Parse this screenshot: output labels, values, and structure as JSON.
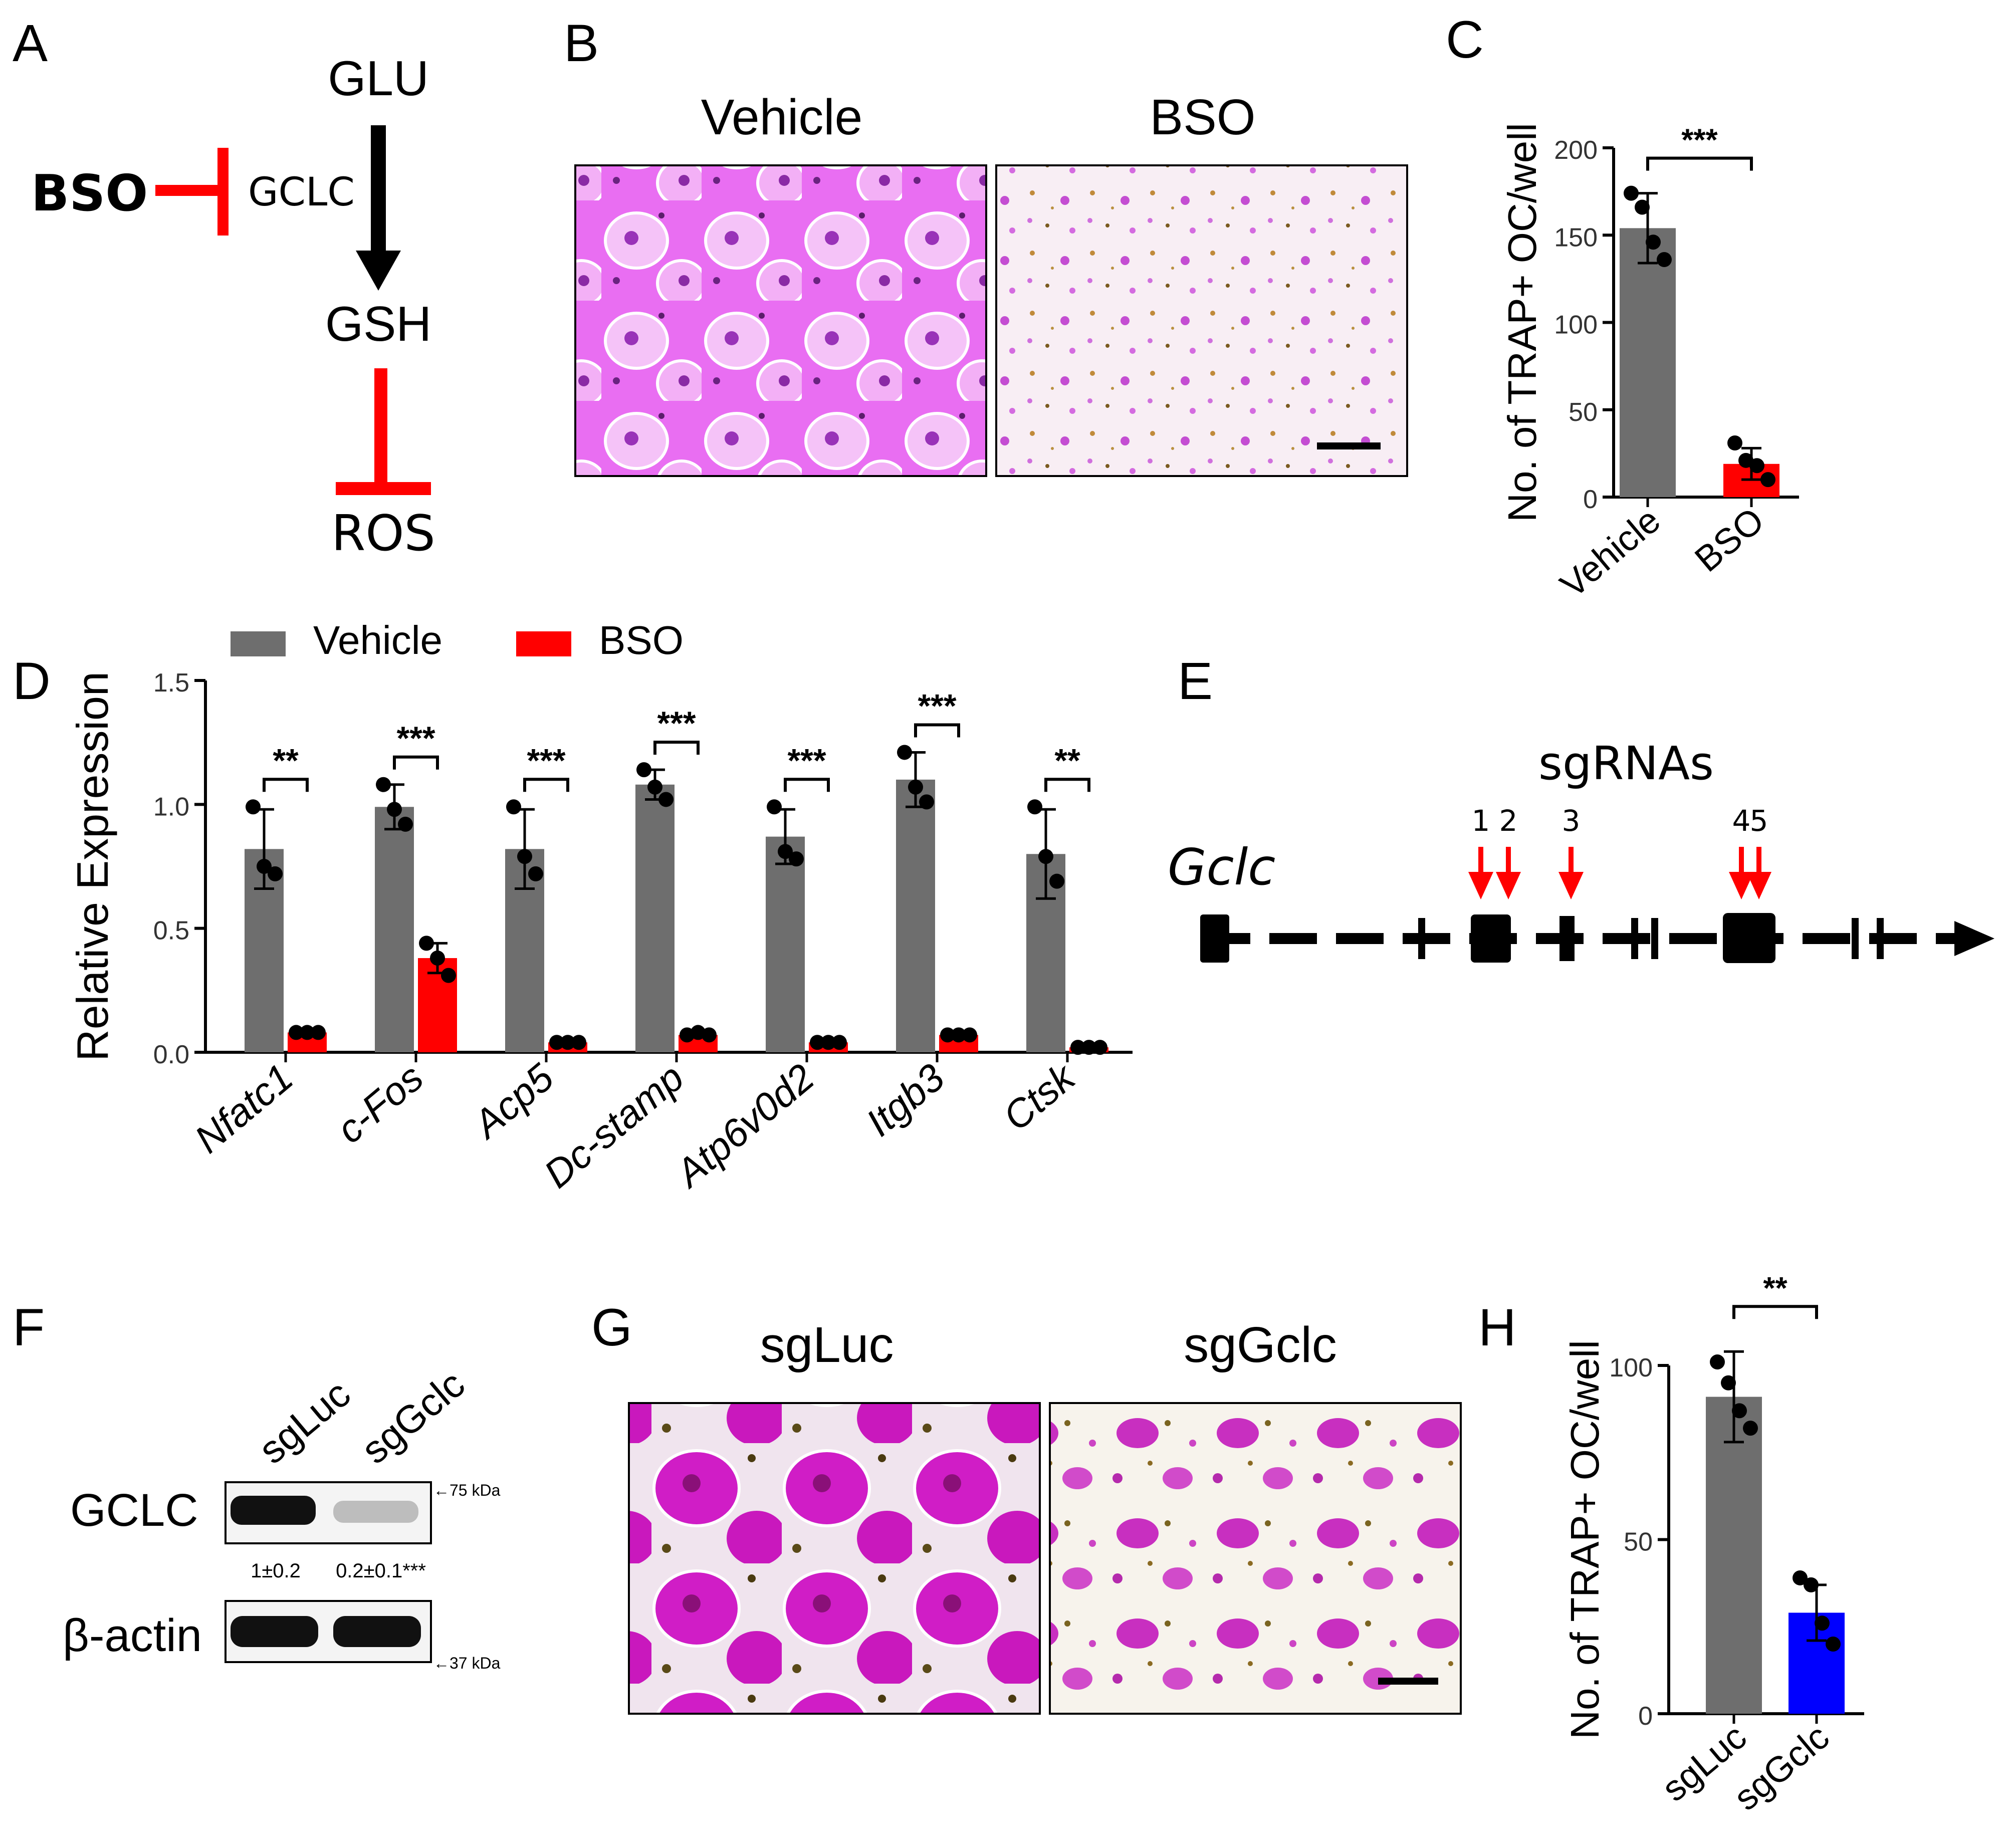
{
  "panels": {
    "A": "A",
    "B": "B",
    "C": "C",
    "D": "D",
    "E": "E",
    "F": "F",
    "G": "G",
    "H": "H"
  },
  "colors": {
    "vehicle": "#6e6e6e",
    "bso": "#ff0000",
    "sggclc": "#0000ff",
    "inhibit": "#ff0000"
  },
  "panelA": {
    "glu": "GLU",
    "gsh": "GSH",
    "ros": "ROS",
    "bso": "BSO",
    "gclc": "GCLC"
  },
  "panelB": {
    "left_label": "Vehicle",
    "right_label": "BSO"
  },
  "panelE": {
    "title": "sgRNAs",
    "gene": "Gclc",
    "guides": [
      "1",
      "2",
      "3",
      "4",
      "5"
    ]
  },
  "panelF": {
    "lanes": [
      "sgLuc",
      "sgGclc"
    ],
    "gclc_label": "GCLC",
    "actin_label": "β-actin",
    "marker_75": "←75 kDa",
    "marker_37": "←37 kDa",
    "quant": [
      "1±0.2",
      "0.2±0.1***"
    ]
  },
  "panelG": {
    "left_label": "sgLuc",
    "right_label": "sgGclc"
  },
  "chart_data": [
    {
      "id": "C",
      "type": "bar",
      "categories": [
        "Vehicle",
        "BSO"
      ],
      "values": [
        154,
        19
      ],
      "errors": [
        20,
        9
      ],
      "points": [
        [
          174,
          166,
          146,
          136
        ],
        [
          31,
          21,
          18,
          10
        ]
      ],
      "ylabel": "No. of TRAP+ OC/well",
      "ylim": [
        0,
        200
      ],
      "yticks": [
        0,
        50,
        100,
        150,
        200
      ],
      "significance": "***"
    },
    {
      "id": "D",
      "type": "bar",
      "categories": [
        "Nfatc1",
        "c-Fos",
        "Acp5",
        "Dc-stamp",
        "Atp6v0d2",
        "Itgb3",
        "Ctsk"
      ],
      "series": [
        {
          "name": "Vehicle",
          "values": [
            0.82,
            0.99,
            0.82,
            1.08,
            0.87,
            1.1,
            0.8
          ],
          "errors": [
            0.16,
            0.09,
            0.16,
            0.06,
            0.11,
            0.11,
            0.18
          ],
          "points": [
            [
              0.99,
              0.75,
              0.72
            ],
            [
              1.08,
              0.98,
              0.92
            ],
            [
              0.99,
              0.79,
              0.72
            ],
            [
              1.14,
              1.07,
              1.02
            ],
            [
              0.99,
              0.81,
              0.78
            ],
            [
              1.21,
              1.07,
              1.01
            ],
            [
              0.99,
              0.79,
              0.69
            ]
          ]
        },
        {
          "name": "BSO",
          "values": [
            0.08,
            0.38,
            0.04,
            0.07,
            0.04,
            0.07,
            0.02
          ],
          "errors": [
            0.005,
            0.06,
            0.003,
            0.005,
            0.003,
            0.005,
            0.002
          ],
          "points": [
            [
              0.08,
              0.08,
              0.08
            ],
            [
              0.44,
              0.38,
              0.31
            ],
            [
              0.04,
              0.04,
              0.04
            ],
            [
              0.07,
              0.08,
              0.07
            ],
            [
              0.04,
              0.04,
              0.04
            ],
            [
              0.07,
              0.07,
              0.07
            ],
            [
              0.02,
              0.02,
              0.02
            ]
          ]
        }
      ],
      "significance": [
        "**",
        "***",
        "***",
        "***",
        "***",
        "***",
        "**"
      ],
      "ylabel": "Relative Expression",
      "ylim": [
        0,
        1.5
      ],
      "yticks": [
        0.0,
        0.5,
        1.0,
        1.5
      ],
      "legend": [
        "Vehicle",
        "BSO"
      ],
      "legend_position": "top"
    },
    {
      "id": "H",
      "type": "bar",
      "categories": [
        "sgLuc",
        "sgGclc"
      ],
      "values": [
        91,
        29
      ],
      "errors": [
        13,
        8
      ],
      "points": [
        [
          101,
          95,
          87,
          82
        ],
        [
          39,
          37,
          26,
          20
        ]
      ],
      "ylabel": "No. of TRAP+ OC/well",
      "ylim": [
        0,
        100
      ],
      "yticks": [
        0,
        50,
        100
      ],
      "significance": "**"
    }
  ]
}
